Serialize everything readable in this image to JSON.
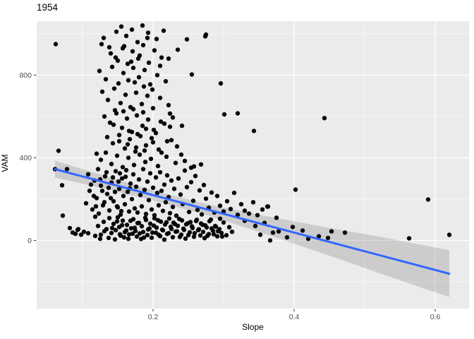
{
  "chart_data": {
    "type": "scatter",
    "title": "1954",
    "xlabel": "Slope",
    "ylabel": "VAM",
    "xlim": [
      0.035,
      0.648
    ],
    "ylim": [
      -330,
      1061
    ],
    "grid": true,
    "legend_position": "none",
    "x_major_ticks": [
      0.2,
      0.4,
      0.6
    ],
    "x_tick_labels": [
      "0.2",
      "0.4",
      "0.6"
    ],
    "x_minor_ticks": [
      0.1,
      0.3,
      0.5
    ],
    "y_major_ticks": [
      0,
      400,
      800
    ],
    "y_tick_labels": [
      "0",
      "400",
      "800"
    ],
    "y_minor_ticks": [
      -200,
      200,
      600,
      1000
    ],
    "colors": {
      "panel_bg": "#EBEBEB",
      "grid": "#FFFFFF",
      "point": "#000000",
      "smooth_line": "#3366FF",
      "ci_band": "#7F7F7F",
      "ci_band_opacity": 0.28,
      "tick_label": "#4D4D4D",
      "tick_mark": "#333333"
    },
    "point_radius": 3.2,
    "smooth_line": {
      "x": [
        0.061,
        0.62
      ],
      "y": [
        345,
        -161
      ]
    },
    "ci_band": {
      "upper": [
        [
          0.061,
          386
        ],
        [
          0.133,
          311
        ],
        [
          0.203,
          239
        ],
        [
          0.283,
          171
        ],
        [
          0.363,
          116
        ],
        [
          0.443,
          65
        ],
        [
          0.523,
          17
        ],
        [
          0.62,
          -48
        ]
      ],
      "lower": [
        [
          0.061,
          304
        ],
        [
          0.133,
          250
        ],
        [
          0.203,
          191
        ],
        [
          0.283,
          116
        ],
        [
          0.363,
          27
        ],
        [
          0.443,
          -65
        ],
        [
          0.523,
          -161
        ],
        [
          0.62,
          -274
        ]
      ]
    },
    "points": [
      [
        0.118,
        22
      ],
      [
        0.125,
        8
      ],
      [
        0.131,
        45
      ],
      [
        0.137,
        12
      ],
      [
        0.142,
        60
      ],
      [
        0.146,
        5
      ],
      [
        0.149,
        92
      ],
      [
        0.153,
        30
      ],
      [
        0.156,
        74
      ],
      [
        0.159,
        15
      ],
      [
        0.162,
        48
      ],
      [
        0.165,
        8
      ],
      [
        0.168,
        95
      ],
      [
        0.171,
        33
      ],
      [
        0.174,
        61
      ],
      [
        0.177,
        19
      ],
      [
        0.18,
        85
      ],
      [
        0.183,
        7
      ],
      [
        0.186,
        41
      ],
      [
        0.189,
        110
      ],
      [
        0.192,
        26
      ],
      [
        0.195,
        58
      ],
      [
        0.198,
        13
      ],
      [
        0.201,
        72
      ],
      [
        0.204,
        37
      ],
      [
        0.207,
        98
      ],
      [
        0.21,
        21
      ],
      [
        0.213,
        52
      ],
      [
        0.216,
        4
      ],
      [
        0.219,
        88
      ],
      [
        0.222,
        35
      ],
      [
        0.225,
        66
      ],
      [
        0.228,
        16
      ],
      [
        0.231,
        79
      ],
      [
        0.234,
        44
      ],
      [
        0.237,
        104
      ],
      [
        0.24,
        28
      ],
      [
        0.243,
        57
      ],
      [
        0.246,
        9
      ],
      [
        0.249,
        83
      ],
      [
        0.252,
        39
      ],
      [
        0.255,
        68
      ],
      [
        0.258,
        18
      ],
      [
        0.261,
        94
      ],
      [
        0.264,
        50
      ],
      [
        0.267,
        24
      ],
      [
        0.27,
        76
      ],
      [
        0.273,
        11
      ],
      [
        0.276,
        63
      ],
      [
        0.279,
        31
      ],
      [
        0.282,
        101
      ],
      [
        0.285,
        47
      ],
      [
        0.288,
        70
      ],
      [
        0.291,
        20
      ],
      [
        0.294,
        55
      ],
      [
        0.297,
        36
      ],
      [
        0.3,
        87
      ],
      [
        0.304,
        25
      ],
      [
        0.308,
        64
      ],
      [
        0.312,
        42
      ],
      [
        0.118,
        115
      ],
      [
        0.122,
        70
      ],
      [
        0.126,
        28
      ],
      [
        0.13,
        90
      ],
      [
        0.134,
        55
      ],
      [
        0.138,
        108
      ],
      [
        0.141,
        36
      ],
      [
        0.144,
        80
      ],
      [
        0.147,
        50
      ],
      [
        0.15,
        112
      ],
      [
        0.152,
        65
      ],
      [
        0.154,
        23
      ],
      [
        0.157,
        96
      ],
      [
        0.16,
        40
      ],
      [
        0.163,
        75
      ],
      [
        0.166,
        29
      ],
      [
        0.169,
        59
      ],
      [
        0.172,
        103
      ],
      [
        0.175,
        46
      ],
      [
        0.178,
        84
      ],
      [
        0.181,
        34
      ],
      [
        0.184,
        69
      ],
      [
        0.187,
        14
      ],
      [
        0.19,
        99
      ],
      [
        0.193,
        53
      ],
      [
        0.196,
        81
      ],
      [
        0.199,
        38
      ],
      [
        0.202,
        107
      ],
      [
        0.205,
        62
      ],
      [
        0.208,
        27
      ],
      [
        0.211,
        91
      ],
      [
        0.214,
        49
      ],
      [
        0.217,
        77
      ],
      [
        0.22,
        32
      ],
      [
        0.223,
        106
      ],
      [
        0.226,
        56
      ],
      [
        0.229,
        86
      ],
      [
        0.232,
        43
      ],
      [
        0.235,
        71
      ],
      [
        0.238,
        17
      ],
      [
        0.241,
        97
      ],
      [
        0.244,
        51
      ],
      [
        0.247,
        78
      ],
      [
        0.25,
        26
      ],
      [
        0.253,
        89
      ],
      [
        0.256,
        60
      ],
      [
        0.259,
        35
      ],
      [
        0.262,
        100
      ],
      [
        0.265,
        54
      ],
      [
        0.268,
        82
      ],
      [
        0.271,
        41
      ],
      [
        0.274,
        73
      ],
      [
        0.277,
        22
      ],
      [
        0.28,
        93
      ],
      [
        0.283,
        58
      ],
      [
        0.286,
        30
      ],
      [
        0.289,
        67
      ],
      [
        0.292,
        45
      ],
      [
        0.295,
        105
      ],
      [
        0.298,
        19
      ],
      [
        0.105,
        180
      ],
      [
        0.11,
        240
      ],
      [
        0.114,
        150
      ],
      [
        0.117,
        290
      ],
      [
        0.12,
        205
      ],
      [
        0.123,
        130
      ],
      [
        0.126,
        265
      ],
      [
        0.129,
        170
      ],
      [
        0.132,
        310
      ],
      [
        0.135,
        225
      ],
      [
        0.138,
        145
      ],
      [
        0.141,
        280
      ],
      [
        0.144,
        190
      ],
      [
        0.147,
        335
      ],
      [
        0.15,
        160
      ],
      [
        0.152,
        250
      ],
      [
        0.154,
        125
      ],
      [
        0.156,
        300
      ],
      [
        0.158,
        215
      ],
      [
        0.16,
        175
      ],
      [
        0.162,
        340
      ],
      [
        0.164,
        235
      ],
      [
        0.166,
        140
      ],
      [
        0.168,
        275
      ],
      [
        0.17,
        200
      ],
      [
        0.172,
        320
      ],
      [
        0.174,
        155
      ],
      [
        0.176,
        260
      ],
      [
        0.178,
        135
      ],
      [
        0.18,
        295
      ],
      [
        0.182,
        220
      ],
      [
        0.184,
        165
      ],
      [
        0.186,
        345
      ],
      [
        0.188,
        245
      ],
      [
        0.19,
        128
      ],
      [
        0.192,
        285
      ],
      [
        0.194,
        195
      ],
      [
        0.196,
        325
      ],
      [
        0.198,
        150
      ],
      [
        0.2,
        255
      ],
      [
        0.202,
        122
      ],
      [
        0.204,
        305
      ],
      [
        0.206,
        230
      ],
      [
        0.208,
        170
      ],
      [
        0.21,
        330
      ],
      [
        0.212,
        240
      ],
      [
        0.214,
        143
      ],
      [
        0.216,
        270
      ],
      [
        0.218,
        185
      ],
      [
        0.22,
        315
      ],
      [
        0.222,
        210
      ],
      [
        0.224,
        132
      ],
      [
        0.226,
        290
      ],
      [
        0.228,
        162
      ],
      [
        0.23,
        250
      ],
      [
        0.233,
        120
      ],
      [
        0.236,
        300
      ],
      [
        0.239,
        222
      ],
      [
        0.242,
        176
      ],
      [
        0.245,
        338
      ],
      [
        0.248,
        258
      ],
      [
        0.251,
        138
      ],
      [
        0.254,
        282
      ],
      [
        0.257,
        192
      ],
      [
        0.26,
        312
      ],
      [
        0.263,
        148
      ],
      [
        0.266,
        242
      ],
      [
        0.269,
        126
      ],
      [
        0.272,
        268
      ],
      [
        0.275,
        202
      ],
      [
        0.279,
        158
      ],
      [
        0.283,
        232
      ],
      [
        0.287,
        135
      ],
      [
        0.291,
        215
      ],
      [
        0.295,
        168
      ],
      [
        0.3,
        140
      ],
      [
        0.305,
        190
      ],
      [
        0.31,
        152
      ],
      [
        0.315,
        230
      ],
      [
        0.32,
        124
      ],
      [
        0.325,
        175
      ],
      [
        0.33,
        144
      ],
      [
        0.336,
        130
      ],
      [
        0.342,
        185
      ],
      [
        0.348,
        122
      ],
      [
        0.355,
        150
      ],
      [
        0.362,
        164
      ],
      [
        0.108,
        320
      ],
      [
        0.112,
        270
      ],
      [
        0.116,
        215
      ],
      [
        0.119,
        165
      ],
      [
        0.122,
        345
      ],
      [
        0.125,
        295
      ],
      [
        0.128,
        240
      ],
      [
        0.131,
        185
      ],
      [
        0.134,
        330
      ],
      [
        0.137,
        255
      ],
      [
        0.14,
        205
      ],
      [
        0.143,
        305
      ],
      [
        0.146,
        235
      ],
      [
        0.149,
        165
      ],
      [
        0.151,
        285
      ],
      [
        0.153,
        325
      ],
      [
        0.155,
        142
      ],
      [
        0.161,
        308
      ],
      [
        0.167,
        252
      ],
      [
        0.13,
        980
      ],
      [
        0.148,
        1010
      ],
      [
        0.155,
        1035
      ],
      [
        0.162,
        990
      ],
      [
        0.17,
        1020
      ],
      [
        0.178,
        960
      ],
      [
        0.185,
        1040
      ],
      [
        0.193,
        1005
      ],
      [
        0.205,
        975
      ],
      [
        0.215,
        1015
      ],
      [
        0.14,
        905
      ],
      [
        0.15,
        870
      ],
      [
        0.157,
        930
      ],
      [
        0.164,
        855
      ],
      [
        0.171,
        915
      ],
      [
        0.179,
        880
      ],
      [
        0.186,
        945
      ],
      [
        0.194,
        860
      ],
      [
        0.202,
        920
      ],
      [
        0.212,
        885
      ],
      [
        0.124,
        820
      ],
      [
        0.133,
        780
      ],
      [
        0.142,
        840
      ],
      [
        0.151,
        760
      ],
      [
        0.158,
        810
      ],
      [
        0.165,
        775
      ],
      [
        0.172,
        835
      ],
      [
        0.18,
        790
      ],
      [
        0.188,
        825
      ],
      [
        0.196,
        755
      ],
      [
        0.206,
        800
      ],
      [
        0.218,
        770
      ],
      [
        0.128,
        720
      ],
      [
        0.136,
        680
      ],
      [
        0.145,
        735
      ],
      [
        0.154,
        665
      ],
      [
        0.161,
        705
      ],
      [
        0.168,
        645
      ],
      [
        0.176,
        715
      ],
      [
        0.184,
        660
      ],
      [
        0.192,
        700
      ],
      [
        0.2,
        640
      ],
      [
        0.21,
        690
      ],
      [
        0.222,
        655
      ],
      [
        0.131,
        600
      ],
      [
        0.139,
        570
      ],
      [
        0.148,
        615
      ],
      [
        0.156,
        545
      ],
      [
        0.163,
        590
      ],
      [
        0.17,
        525
      ],
      [
        0.177,
        605
      ],
      [
        0.185,
        555
      ],
      [
        0.193,
        585
      ],
      [
        0.201,
        535
      ],
      [
        0.211,
        575
      ],
      [
        0.224,
        550
      ],
      [
        0.135,
        500
      ],
      [
        0.143,
        470
      ],
      [
        0.152,
        510
      ],
      [
        0.16,
        445
      ],
      [
        0.167,
        490
      ],
      [
        0.175,
        430
      ],
      [
        0.182,
        505
      ],
      [
        0.19,
        460
      ],
      [
        0.198,
        495
      ],
      [
        0.208,
        440
      ],
      [
        0.22,
        480
      ],
      [
        0.234,
        455
      ],
      [
        0.12,
        420
      ],
      [
        0.126,
        390
      ],
      [
        0.133,
        425
      ],
      [
        0.141,
        370
      ],
      [
        0.149,
        410
      ],
      [
        0.157,
        355
      ],
      [
        0.165,
        400
      ],
      [
        0.173,
        365
      ],
      [
        0.181,
        415
      ],
      [
        0.189,
        380
      ],
      [
        0.197,
        395
      ],
      [
        0.207,
        360
      ],
      [
        0.219,
        405
      ],
      [
        0.232,
        375
      ],
      [
        0.245,
        385
      ],
      [
        0.258,
        358
      ],
      [
        0.127,
        950
      ],
      [
        0.138,
        935
      ],
      [
        0.147,
        885
      ],
      [
        0.159,
        940
      ],
      [
        0.169,
        865
      ],
      [
        0.181,
        895
      ],
      [
        0.174,
        765
      ],
      [
        0.187,
        745
      ],
      [
        0.199,
        730
      ],
      [
        0.146,
        630
      ],
      [
        0.158,
        625
      ],
      [
        0.172,
        635
      ],
      [
        0.186,
        620
      ],
      [
        0.144,
        560
      ],
      [
        0.166,
        530
      ],
      [
        0.178,
        515
      ],
      [
        0.19,
        540
      ],
      [
        0.204,
        520
      ],
      [
        0.216,
        565
      ],
      [
        0.228,
        595
      ],
      [
        0.152,
        480
      ],
      [
        0.164,
        465
      ],
      [
        0.176,
        450
      ],
      [
        0.188,
        435
      ],
      [
        0.2,
        475
      ],
      [
        0.212,
        425
      ],
      [
        0.226,
        485
      ],
      [
        0.24,
        415
      ],
      [
        0.254,
        352
      ],
      [
        0.268,
        368
      ],
      [
        0.062,
        950
      ],
      [
        0.061,
        345
      ],
      [
        0.066,
        434
      ],
      [
        0.071,
        267
      ],
      [
        0.072,
        120
      ],
      [
        0.078,
        345
      ],
      [
        0.082,
        60
      ],
      [
        0.086,
        38
      ],
      [
        0.09,
        32
      ],
      [
        0.094,
        55
      ],
      [
        0.098,
        28
      ],
      [
        0.102,
        42
      ],
      [
        0.093,
        51
      ],
      [
        0.108,
        35
      ],
      [
        0.235,
        923
      ],
      [
        0.248,
        973
      ],
      [
        0.275,
        996
      ],
      [
        0.274,
        988
      ],
      [
        0.222,
        880
      ],
      [
        0.21,
        845
      ],
      [
        0.255,
        803
      ],
      [
        0.296,
        760
      ],
      [
        0.301,
        610
      ],
      [
        0.224,
        614
      ],
      [
        0.241,
        555
      ],
      [
        0.192,
        980
      ],
      [
        0.32,
        615
      ],
      [
        0.343,
        530
      ],
      [
        0.443,
        592
      ],
      [
        0.402,
        246
      ],
      [
        0.59,
        198
      ],
      [
        0.363,
        164
      ],
      [
        0.366,
        0
      ],
      [
        0.412,
        48
      ],
      [
        0.453,
        44
      ],
      [
        0.472,
        38
      ],
      [
        0.563,
        10
      ],
      [
        0.62,
        27
      ],
      [
        0.33,
        95
      ],
      [
        0.345,
        70
      ],
      [
        0.352,
        28
      ],
      [
        0.358,
        85
      ],
      [
        0.375,
        110
      ],
      [
        0.39,
        15
      ],
      [
        0.398,
        65
      ],
      [
        0.42,
        8
      ],
      [
        0.435,
        20
      ],
      [
        0.448,
        12
      ],
      [
        0.37,
        38
      ],
      [
        0.378,
        44
      ]
    ]
  }
}
